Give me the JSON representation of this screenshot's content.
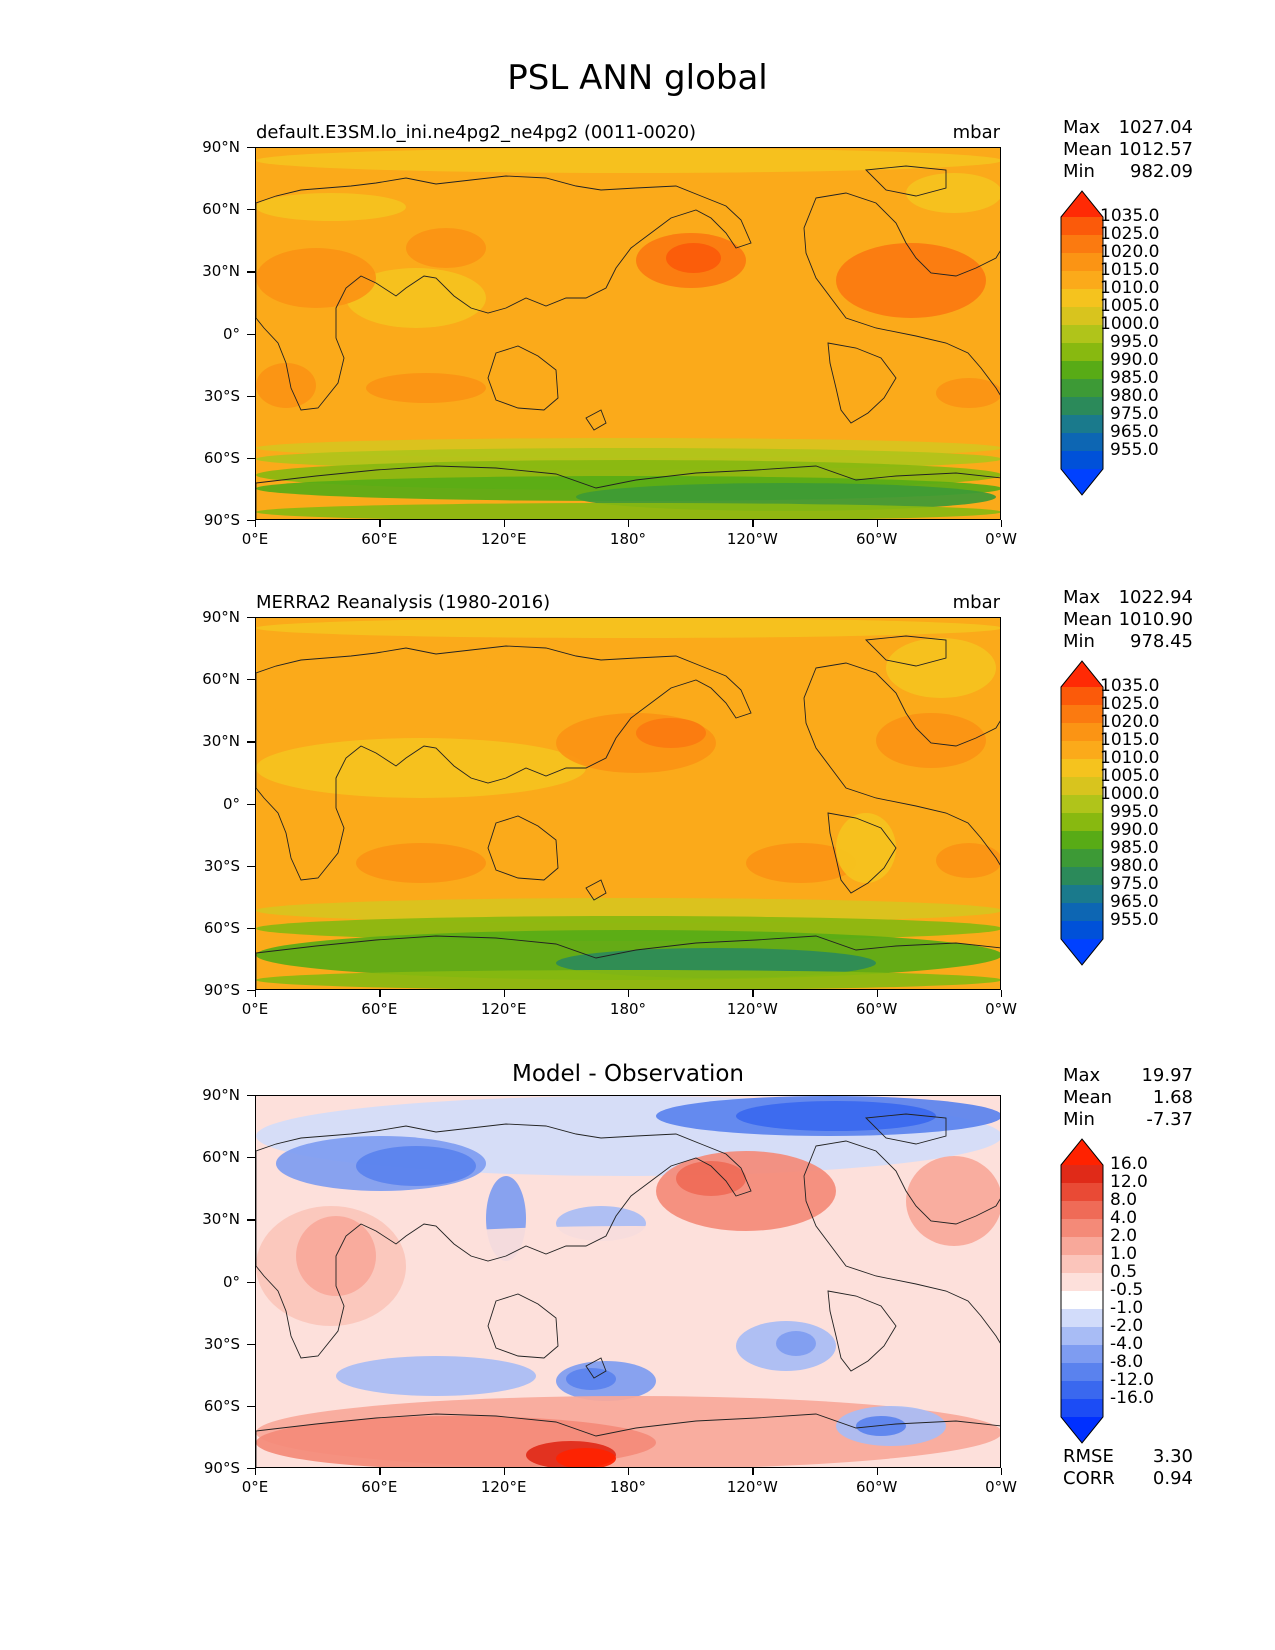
{
  "figure": {
    "title": "PSL ANN global"
  },
  "x_ticks": [
    "0°E",
    "60°E",
    "120°E",
    "180°",
    "120°W",
    "60°W",
    "0°W"
  ],
  "y_ticks": [
    "90°N",
    "60°N",
    "30°N",
    "0°",
    "30°S",
    "60°S",
    "90°S"
  ],
  "panels": [
    {
      "title_left": "default.E3SM.lo_ini.ne4pg2_ne4pg2 (0011-0020)",
      "units": "mbar",
      "stats": {
        "max_label": "Max",
        "max": "1027.04",
        "mean_label": "Mean",
        "mean": "1012.57",
        "min_label": "Min",
        "min": "982.09"
      },
      "colorbar_labels": [
        "1035.0",
        "1025.0",
        "1020.0",
        "1015.0",
        "1010.0",
        "1005.0",
        "1000.0",
        "995.0",
        "990.0",
        "985.0",
        "980.0",
        "975.0",
        "965.0",
        "955.0"
      ]
    },
    {
      "title_left": "MERRA2 Reanalysis (1980-2016)",
      "units": "mbar",
      "stats": {
        "max_label": "Max",
        "max": "1022.94",
        "mean_label": "Mean",
        "mean": "1010.90",
        "min_label": "Min",
        "min": "978.45"
      },
      "colorbar_labels": [
        "1035.0",
        "1025.0",
        "1020.0",
        "1015.0",
        "1010.0",
        "1005.0",
        "1000.0",
        "995.0",
        "990.0",
        "985.0",
        "980.0",
        "975.0",
        "965.0",
        "955.0"
      ]
    },
    {
      "title_center": "Model - Observation",
      "stats": {
        "max_label": "Max",
        "max": "19.97",
        "mean_label": "Mean",
        "mean": "1.68",
        "min_label": "Min",
        "min": "-7.37"
      },
      "colorbar_labels": [
        "16.0",
        "12.0",
        "8.0",
        "4.0",
        "2.0",
        "1.0",
        "0.5",
        "-0.5",
        "-1.0",
        "-2.0",
        "-4.0",
        "-8.0",
        "-12.0",
        "-16.0"
      ],
      "metrics": {
        "rmse_label": "RMSE",
        "rmse": "3.30",
        "corr_label": "CORR",
        "corr": "0.94"
      }
    }
  ],
  "colors": {
    "psl_scale": [
      "#0041ff",
      "#0051d9",
      "#0d66b3",
      "#1a7a8c",
      "#2b8a5a",
      "#3d9a36",
      "#58ab16",
      "#88b910",
      "#b0c41a",
      "#d8c41e",
      "#f5c31e",
      "#fbaa1a",
      "#fb9414",
      "#fb7a10",
      "#fb5a0a",
      "#ff2a05"
    ],
    "diff_scale": [
      "#0030ff",
      "#1c4cf5",
      "#3a68ef",
      "#5a82ee",
      "#7e9cf1",
      "#a8bcf5",
      "#d2dcfa",
      "#ffffff",
      "#fde0db",
      "#fbc5bb",
      "#f8a89a",
      "#f48a78",
      "#ef6b57",
      "#e94a35",
      "#e02a18",
      "#ff2200"
    ]
  }
}
